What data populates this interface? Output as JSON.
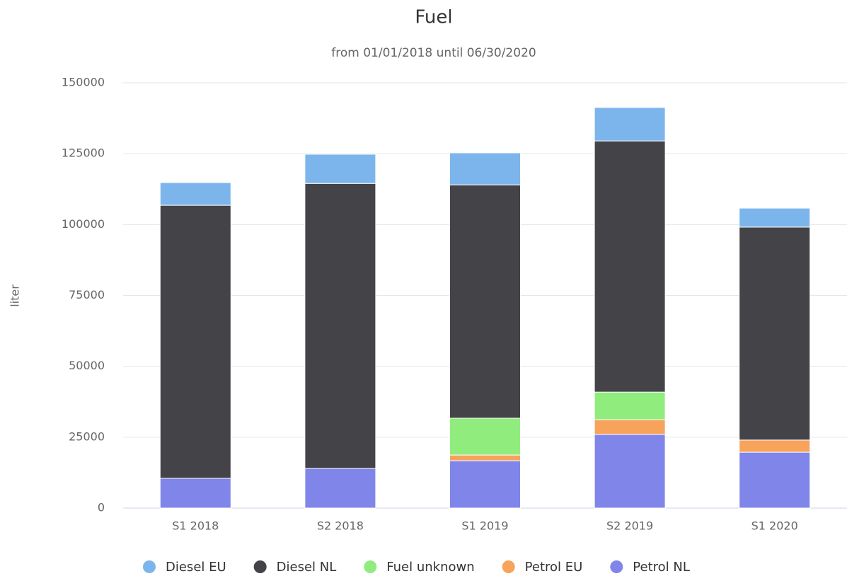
{
  "chart_data": {
    "type": "stacked_bar",
    "title": "Fuel",
    "subtitle": "from 01/01/2018 until 06/30/2020",
    "y_label": "liter",
    "categories": [
      "S1 2018",
      "S2 2018",
      "S1 2019",
      "S2 2019",
      "S1 2020"
    ],
    "series": [
      {
        "name": "Petrol NL",
        "color": "#8085e9",
        "values": [
          10500,
          14000,
          16700,
          26000,
          19700
        ]
      },
      {
        "name": "Petrol EU",
        "color": "#f7a35c",
        "values": [
          0,
          0,
          2000,
          5200,
          4300
        ]
      },
      {
        "name": "Fuel unknown",
        "color": "#90ed7d",
        "values": [
          0,
          0,
          13000,
          9700,
          0
        ]
      },
      {
        "name": "Diesel NL",
        "color": "#434348",
        "values": [
          96300,
          100500,
          82300,
          88600,
          75100
        ]
      },
      {
        "name": "Diesel EU",
        "color": "#7cb5ec",
        "values": [
          8000,
          10300,
          11300,
          11800,
          6700
        ]
      }
    ],
    "legend_order": [
      4,
      3,
      2,
      1,
      0
    ],
    "ylim": [
      0,
      150000
    ],
    "yticks": [
      0,
      25000,
      50000,
      75000,
      100000,
      125000,
      150000
    ],
    "grid": true
  }
}
